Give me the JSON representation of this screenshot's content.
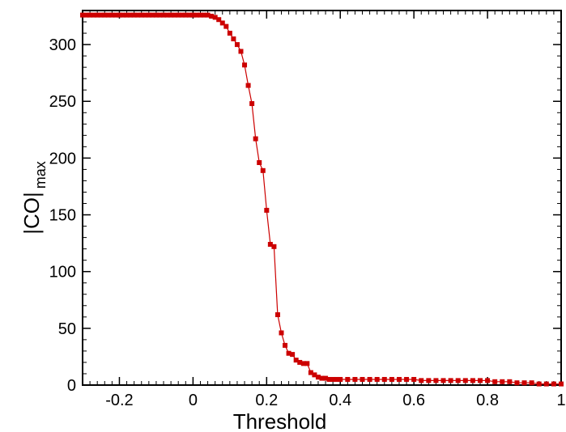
{
  "chart_data": {
    "type": "line",
    "xlabel": "Threshold",
    "ylabel_main": "|CO|",
    "ylabel_sub": "max",
    "xlim": [
      -0.3,
      1.0
    ],
    "ylim": [
      0,
      330
    ],
    "xticks": [
      -0.2,
      0,
      0.2,
      0.4,
      0.6,
      0.8,
      1
    ],
    "xtick_labels": [
      "-0.2",
      "0",
      "0.2",
      "0.4",
      "0.6",
      "0.8",
      "1"
    ],
    "yticks": [
      0,
      50,
      100,
      150,
      200,
      250,
      300
    ],
    "ytick_labels": [
      "0",
      "50",
      "100",
      "150",
      "200",
      "250",
      "300"
    ],
    "grid": false,
    "colors": {
      "series": "#cc0000",
      "axis": "#000000"
    },
    "series": [
      {
        "marker": "square",
        "x": [
          -0.3,
          -0.29,
          -0.28,
          -0.27,
          -0.26,
          -0.25,
          -0.24,
          -0.23,
          -0.22,
          -0.21,
          -0.2,
          -0.19,
          -0.18,
          -0.17,
          -0.16,
          -0.15,
          -0.14,
          -0.13,
          -0.12,
          -0.11,
          -0.1,
          -0.09,
          -0.08,
          -0.07,
          -0.06,
          -0.05,
          -0.04,
          -0.03,
          -0.02,
          -0.01,
          0.0,
          0.01,
          0.02,
          0.03,
          0.04,
          0.05,
          0.06,
          0.07,
          0.08,
          0.09,
          0.1,
          0.11,
          0.12,
          0.13,
          0.14,
          0.15,
          0.16,
          0.17,
          0.18,
          0.19,
          0.2,
          0.21,
          0.22,
          0.23,
          0.24,
          0.25,
          0.26,
          0.27,
          0.28,
          0.29,
          0.3,
          0.31,
          0.32,
          0.33,
          0.34,
          0.35,
          0.36,
          0.37,
          0.38,
          0.39,
          0.4,
          0.42,
          0.44,
          0.46,
          0.48,
          0.5,
          0.52,
          0.54,
          0.56,
          0.58,
          0.6,
          0.62,
          0.64,
          0.66,
          0.68,
          0.7,
          0.72,
          0.74,
          0.76,
          0.78,
          0.8,
          0.82,
          0.84,
          0.86,
          0.88,
          0.9,
          0.92,
          0.94,
          0.96,
          0.98,
          1.0
        ],
        "y": [
          326,
          326,
          326,
          326,
          326,
          326,
          326,
          326,
          326,
          326,
          326,
          326,
          326,
          326,
          326,
          326,
          326,
          326,
          326,
          326,
          326,
          326,
          326,
          326,
          326,
          326,
          326,
          326,
          326,
          326,
          326,
          326,
          326,
          326,
          326,
          325,
          324,
          322,
          319,
          316,
          310,
          305,
          300,
          294,
          282,
          264,
          248,
          217,
          196,
          189,
          154,
          124,
          122,
          62,
          46,
          35,
          28,
          27,
          22,
          20,
          19,
          19,
          11,
          9,
          7,
          6,
          6,
          5,
          5,
          5,
          5,
          5,
          5,
          5,
          5,
          5,
          5,
          5,
          5,
          5,
          5,
          4,
          4,
          4,
          4,
          4,
          4,
          4,
          4,
          4,
          4,
          3,
          3,
          3,
          2,
          2,
          2,
          1,
          1,
          1,
          1
        ]
      }
    ]
  }
}
